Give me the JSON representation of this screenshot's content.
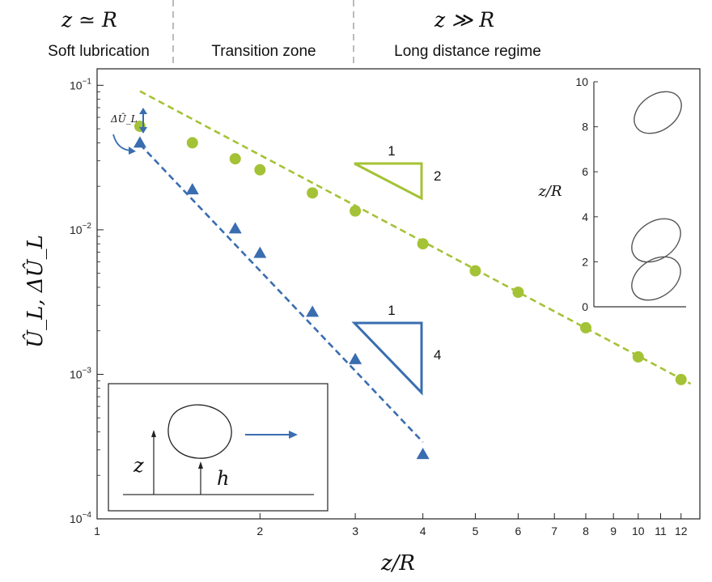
{
  "header": {
    "left_math": "z ≃ R",
    "right_math": "z ≫ R",
    "regimes": [
      "Soft lubrication",
      "Transition zone",
      "Long distance regime"
    ]
  },
  "colors": {
    "green": "#a4c236",
    "blue": "#3a6db0"
  },
  "chart_data": [
    {
      "type": "scatter",
      "scale": "log-log",
      "xlabel": "z/R",
      "ylabel": "Û_L, ΔÛ_L",
      "xlim": [
        1,
        13
      ],
      "ylim": [
        0.0001,
        0.13
      ],
      "x_ticks": [
        1,
        2,
        3,
        4,
        5,
        6,
        7,
        8,
        9,
        10,
        11,
        12
      ],
      "x_tick_labels": [
        "1",
        "2",
        "3",
        "4",
        "5",
        "6",
        "7",
        "8",
        "9",
        "10",
        "11",
        "12"
      ],
      "y_tick_labels": [
        {
          "base": "10",
          "exp": "−1",
          "value": 0.1
        },
        {
          "base": "10",
          "exp": "−2",
          "value": 0.01
        },
        {
          "base": "10",
          "exp": "−3",
          "value": 0.001
        },
        {
          "base": "10",
          "exp": "−4",
          "value": 0.0001
        }
      ],
      "series": [
        {
          "color": "green",
          "marker": "circle",
          "x": [
            1.2,
            1.5,
            1.8,
            2.0,
            2.5,
            3.0,
            4.0,
            5.0,
            6.0,
            8.0,
            10.0,
            12.0
          ],
          "y": [
            0.052,
            0.04,
            0.031,
            0.026,
            0.018,
            0.0135,
            0.008,
            0.0052,
            0.0037,
            0.0021,
            0.00132,
            0.00092
          ],
          "fit": {
            "x": [
              1.2,
              12.5
            ],
            "y": [
              0.091,
              0.00086
            ],
            "style": "dashed"
          }
        },
        {
          "color": "blue",
          "marker": "triangle",
          "x": [
            1.2,
            1.5,
            1.8,
            2.0,
            2.5,
            3.0,
            4.0
          ],
          "y": [
            0.04,
            0.019,
            0.0102,
            0.0069,
            0.0027,
            0.00127,
            0.00028
          ],
          "fit": {
            "x": [
              1.2,
              4.0
            ],
            "y": [
              0.039,
              0.00034
            ],
            "style": "dashed"
          }
        }
      ],
      "slope_triangles": [
        {
          "run_label": "1",
          "rise_label": "2",
          "color": "green"
        },
        {
          "run_label": "1",
          "rise_label": "4",
          "color": "blue"
        }
      ],
      "annotation": "ΔÛ_L"
    },
    {
      "type": "line",
      "ylabel": "z/R",
      "ylim": [
        0,
        10
      ],
      "y_ticks": [
        0,
        2,
        4,
        6,
        8,
        10
      ],
      "description_shapes": 3
    },
    {
      "type": "diagram",
      "labels": [
        "z",
        "h"
      ]
    }
  ]
}
